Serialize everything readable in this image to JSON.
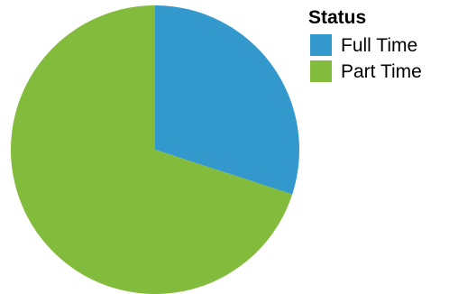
{
  "chart_data": {
    "type": "pie",
    "title": "",
    "legend": {
      "title": "Status",
      "position": "top-right"
    },
    "slices": [
      {
        "label": "Full Time",
        "value": 30,
        "color": "#3399cc"
      },
      {
        "label": "Part Time",
        "value": 70,
        "color": "#83bc3c"
      }
    ],
    "start_angle": "12 o'clock",
    "direction": "clockwise"
  }
}
